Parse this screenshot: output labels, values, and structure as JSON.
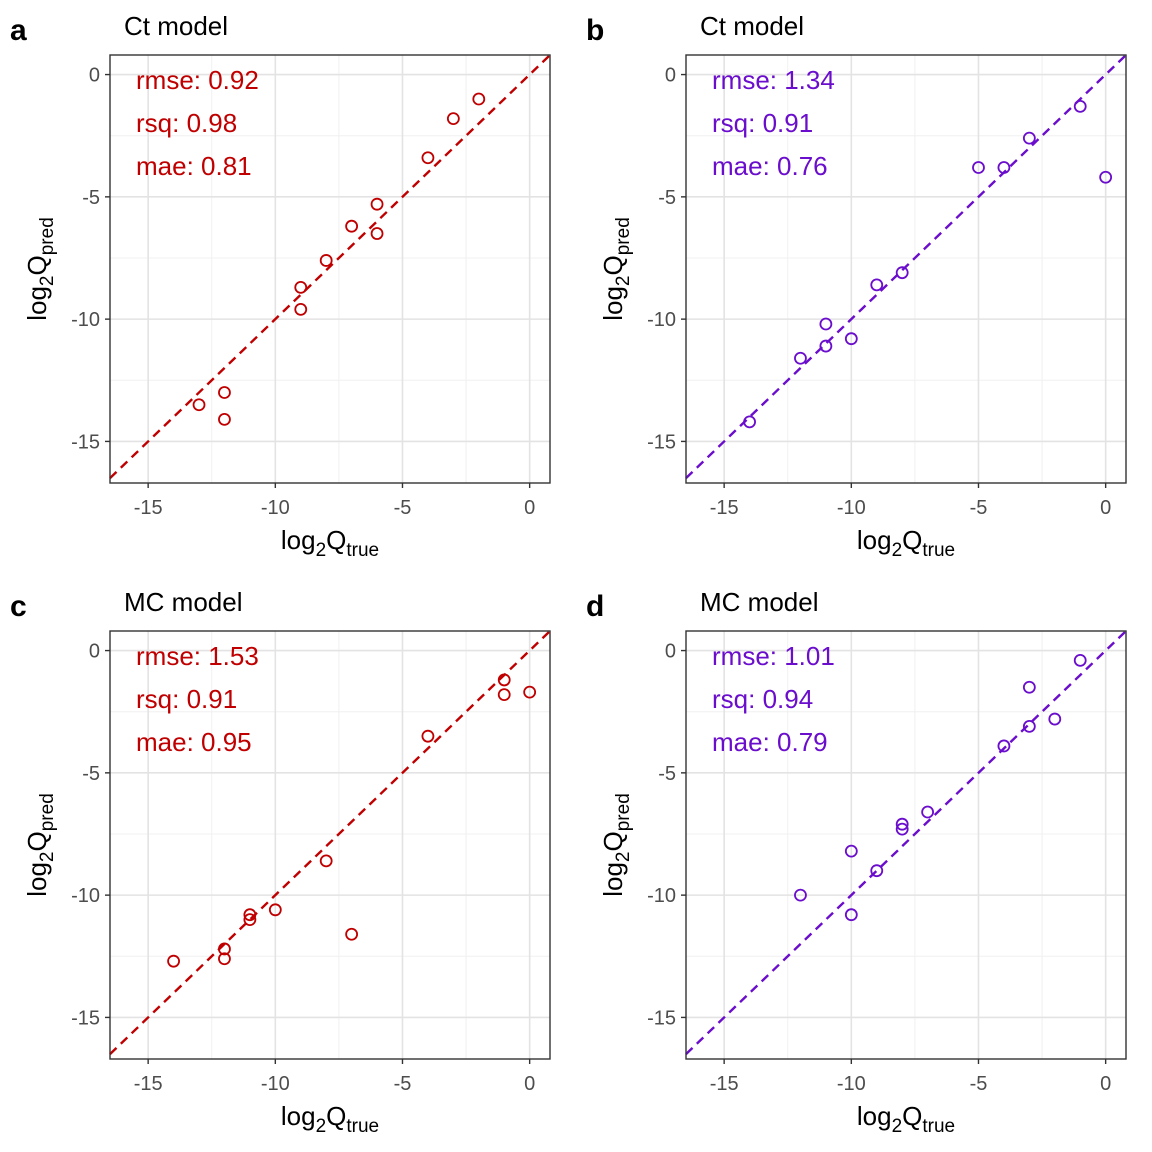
{
  "chart_data": [
    {
      "type": "scatter",
      "panel_label": "a",
      "title": "Ct model",
      "xlabel": "log2Qtrue",
      "ylabel": "log2Qpred",
      "xlim": [
        -16.5,
        0.8
      ],
      "ylim": [
        -16.7,
        0.8
      ],
      "xticks": [
        -15,
        -10,
        -5,
        0
      ],
      "yticks": [
        0,
        -5,
        -10,
        -15
      ],
      "tick_labels": [
        "-15",
        "-10",
        "-5",
        "0"
      ],
      "grid": true,
      "color": "#c00000",
      "reference_line": "y = x (dashed)",
      "stats": [
        "rmse: 0.92",
        "rsq: 0.98",
        "mae: 0.81"
      ],
      "x": [
        -13,
        -12,
        -12,
        -9,
        -9,
        -8,
        -7,
        -6,
        -6,
        -4,
        -3,
        -2
      ],
      "y": [
        -13.5,
        -13.0,
        -14.1,
        -8.7,
        -9.6,
        -7.6,
        -6.2,
        -5.3,
        -6.5,
        -3.4,
        -1.8,
        -1.0
      ]
    },
    {
      "type": "scatter",
      "panel_label": "b",
      "title": "Ct model",
      "xlabel": "log2Qtrue",
      "ylabel": "log2Qpred",
      "xlim": [
        -16.5,
        0.8
      ],
      "ylim": [
        -16.7,
        0.8
      ],
      "xticks": [
        -15,
        -10,
        -5,
        0
      ],
      "yticks": [
        0,
        -5,
        -10,
        -15
      ],
      "tick_labels": [
        "-15",
        "-10",
        "-5",
        "0"
      ],
      "grid": true,
      "color": "#6a0dcc",
      "reference_line": "y = x (dashed)",
      "stats": [
        "rmse: 1.34",
        "rsq: 0.91",
        "mae: 0.76"
      ],
      "x": [
        -14,
        -12,
        -11,
        -11,
        -10,
        -9,
        -8,
        -5,
        -4,
        -3,
        -1,
        0
      ],
      "y": [
        -14.2,
        -11.6,
        -10.2,
        -11.1,
        -10.8,
        -8.6,
        -8.1,
        -3.8,
        -3.8,
        -2.6,
        -1.3,
        -4.2
      ]
    },
    {
      "type": "scatter",
      "panel_label": "c",
      "title": "MC model",
      "xlabel": "log2Qtrue",
      "ylabel": "log2Qpred",
      "xlim": [
        -16.5,
        0.8
      ],
      "ylim": [
        -16.7,
        0.8
      ],
      "xticks": [
        -15,
        -10,
        -5,
        0
      ],
      "yticks": [
        0,
        -5,
        -10,
        -15
      ],
      "tick_labels": [
        "-15",
        "-10",
        "-5",
        "0"
      ],
      "grid": true,
      "color": "#c00000",
      "reference_line": "y = x (dashed)",
      "stats": [
        "rmse: 1.53",
        "rsq: 0.91",
        "mae: 0.95"
      ],
      "x": [
        -14,
        -12,
        -12,
        -11,
        -11,
        -10,
        -8,
        -7,
        -4,
        -1,
        -1,
        0
      ],
      "y": [
        -12.7,
        -12.2,
        -12.6,
        -10.8,
        -11.0,
        -10.6,
        -8.6,
        -11.6,
        -3.5,
        -1.2,
        -1.8,
        -1.7
      ]
    },
    {
      "type": "scatter",
      "panel_label": "d",
      "title": "MC model",
      "xlabel": "log2Qtrue",
      "ylabel": "log2Qpred",
      "xlim": [
        -16.5,
        0.8
      ],
      "ylim": [
        -16.7,
        0.8
      ],
      "xticks": [
        -15,
        -10,
        -5,
        0
      ],
      "yticks": [
        0,
        -5,
        -10,
        -15
      ],
      "tick_labels": [
        "-15",
        "-10",
        "-5",
        "0"
      ],
      "grid": true,
      "color": "#6a0dcc",
      "reference_line": "y = x (dashed)",
      "stats": [
        "rmse: 1.01",
        "rsq: 0.94",
        "mae: 0.79"
      ],
      "x": [
        -12,
        -10,
        -10,
        -9,
        -8,
        -8,
        -7,
        -4,
        -3,
        -3,
        -2,
        -1
      ],
      "y": [
        -10.0,
        -8.2,
        -10.8,
        -9.0,
        -7.1,
        -7.3,
        -6.6,
        -3.9,
        -1.5,
        -3.1,
        -2.8,
        -0.4
      ]
    }
  ]
}
